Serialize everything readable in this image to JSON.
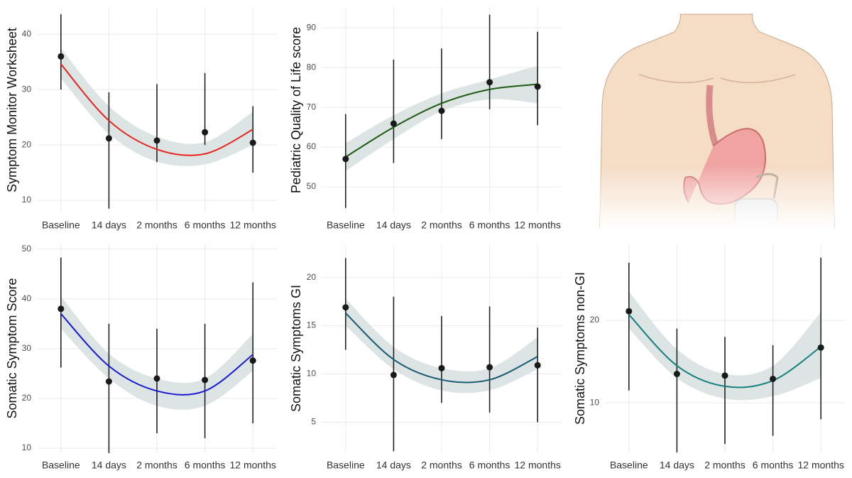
{
  "chart_data": [
    {
      "type": "errorbar",
      "y_label": "Symptom Monitor Worksheet",
      "categories": [
        "Baseline",
        "14 days",
        "2 months",
        "6 months",
        "12 months"
      ],
      "values": [
        36.0,
        21.2,
        20.8,
        22.3,
        20.4
      ],
      "error_low": [
        30,
        8.5,
        16.9,
        20,
        15
      ],
      "error_high": [
        43.6,
        29.5,
        31,
        33,
        27
      ],
      "fit": [
        34.6,
        24.4,
        19.2,
        18.4,
        22.8
      ],
      "band_low": [
        32,
        22,
        17,
        16.5,
        20
      ],
      "band_high": [
        37.5,
        27,
        21.5,
        20.5,
        26
      ],
      "color": "#e8231d",
      "point_color": "#1a1a1a",
      "band_color": "#dce4e4",
      "ylim": [
        7.7,
        44.9
      ],
      "yticks": [
        10,
        20,
        30,
        40
      ],
      "grid": true
    },
    {
      "type": "errorbar",
      "y_label": "Pediatric Quality of Life score",
      "categories": [
        "Baseline",
        "14 days",
        "2 months",
        "6 months",
        "12 months"
      ],
      "values": [
        57,
        65.9,
        69.1,
        76.3,
        75.2
      ],
      "error_low": [
        44.7,
        56,
        62,
        69.5,
        65.5
      ],
      "error_high": [
        68.3,
        82,
        84.8,
        93.3,
        89
      ],
      "fit": [
        57.5,
        65,
        71,
        74.5,
        75.8
      ],
      "band_low": [
        54,
        62,
        69,
        72,
        71
      ],
      "band_high": [
        61,
        68,
        73.5,
        77,
        80.5
      ],
      "color": "#1d5c12",
      "point_color": "#1a1a1a",
      "band_color": "#dce4e4",
      "ylim": [
        43.4,
        95.2
      ],
      "yticks": [
        50,
        60,
        70,
        80,
        90
      ],
      "grid": true
    },
    {
      "type": "errorbar",
      "y_label": "Somatic Symptom Score",
      "categories": [
        "Baseline",
        "14 days",
        "2 months",
        "6 months",
        "12 months"
      ],
      "values": [
        38,
        23.4,
        24,
        23.7,
        27.6
      ],
      "error_low": [
        26.2,
        9,
        13,
        12,
        15
      ],
      "error_high": [
        48.3,
        35,
        34,
        35,
        43.3
      ],
      "fit": [
        37,
        26.5,
        21.5,
        21.5,
        28.8
      ],
      "band_low": [
        34,
        24,
        18.5,
        18.5,
        25.5
      ],
      "band_high": [
        40.5,
        29,
        24,
        24,
        33
      ],
      "color": "#1a1ad4",
      "point_color": "#1a1a1a",
      "band_color": "#dce4e4",
      "ylim": [
        9,
        51.1
      ],
      "yticks": [
        10,
        20,
        30,
        40,
        50
      ],
      "grid": true
    },
    {
      "type": "errorbar",
      "y_label": "Somatic Symptoms GI",
      "categories": [
        "Baseline",
        "14 days",
        "2 months",
        "6 months",
        "12 months"
      ],
      "values": [
        16.9,
        9.9,
        10.6,
        10.7,
        10.9
      ],
      "error_low": [
        12.5,
        2,
        7,
        6,
        5
      ],
      "error_high": [
        22,
        18,
        16,
        17,
        14.8
      ],
      "fit": [
        16.3,
        11.5,
        9.4,
        9.4,
        11.8
      ],
      "band_low": [
        15,
        10.5,
        8.3,
        8.3,
        10.5
      ],
      "band_high": [
        17.8,
        12.8,
        10.6,
        10.6,
        13.8
      ],
      "color": "#1a5c74",
      "point_color": "#1a1a1a",
      "band_color": "#dce4e4",
      "ylim": [
        1.8,
        23.5
      ],
      "yticks": [
        5,
        10,
        15,
        20
      ],
      "grid": true
    },
    {
      "type": "errorbar",
      "y_label": "Somatic Symptoms non-GI",
      "categories": [
        "Baseline",
        "14 days",
        "2 months",
        "6 months",
        "12 months"
      ],
      "values": [
        21.1,
        13.5,
        13.3,
        12.9,
        16.7
      ],
      "error_low": [
        11.5,
        4,
        5,
        6,
        8
      ],
      "error_high": [
        27,
        19,
        18,
        17,
        27.6
      ],
      "fit": [
        20.7,
        14.5,
        12,
        12.7,
        16.8
      ],
      "band_low": [
        19,
        13,
        10.5,
        10.8,
        13
      ],
      "band_high": [
        23.5,
        16.5,
        13.5,
        14.5,
        21
      ],
      "color": "#17807d",
      "point_color": "#1a1a1a",
      "band_color": "#dce4e4",
      "ylim": [
        3.9,
        29.3
      ],
      "yticks": [
        10,
        20
      ],
      "grid": true
    }
  ]
}
